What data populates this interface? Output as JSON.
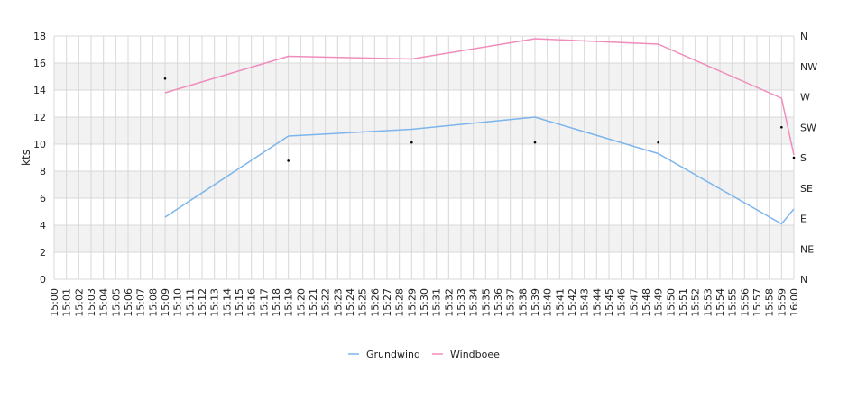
{
  "chart_data": {
    "type": "line",
    "title": "",
    "xlabel": "",
    "ylabel": "kts",
    "ylim": [
      0,
      18
    ],
    "yticks": [
      0,
      2,
      4,
      6,
      8,
      10,
      12,
      14,
      16,
      18
    ],
    "y2_ticks": [
      "N",
      "NE",
      "E",
      "SE",
      "S",
      "SW",
      "W",
      "NW",
      "N"
    ],
    "x_time_start": "15:00",
    "x_time_end": "16:00",
    "x_ticks": [
      "15:00",
      "15:01",
      "15:02",
      "15:03",
      "15:04",
      "15:05",
      "15:06",
      "15:07",
      "15:08",
      "15:09",
      "15:10",
      "15:11",
      "15:12",
      "15:13",
      "15:14",
      "15:15",
      "15:16",
      "15:17",
      "15:18",
      "15:19",
      "15:20",
      "15:21",
      "15:22",
      "15:23",
      "15:24",
      "15:25",
      "15:26",
      "15:27",
      "15:28",
      "15:29",
      "15:30",
      "15:31",
      "15:32",
      "15:33",
      "15:34",
      "15:35",
      "15:36",
      "15:37",
      "15:38",
      "15:39",
      "15:40",
      "15:41",
      "15:42",
      "15:43",
      "15:44",
      "15:45",
      "15:46",
      "15:47",
      "15:48",
      "15:49",
      "15:50",
      "15:51",
      "15:52",
      "15:53",
      "15:54",
      "15:55",
      "15:56",
      "15:57",
      "15:58",
      "15:59",
      "16:00"
    ],
    "grid": true,
    "band_fill": "#f2f2f2",
    "legend_position": "bottom",
    "series": [
      {
        "name": "Grundwind",
        "color": "#7cb5ec",
        "points": [
          {
            "x": "15:09",
            "y": 4.6
          },
          {
            "x": "15:19",
            "y": 10.6
          },
          {
            "x": "15:29",
            "y": 11.1
          },
          {
            "x": "15:39",
            "y": 12.0
          },
          {
            "x": "15:49",
            "y": 9.3
          },
          {
            "x": "15:59",
            "y": 4.1
          },
          {
            "x": "16:00",
            "y": 5.2
          }
        ]
      },
      {
        "name": "Windboee",
        "color": "#f08cbc",
        "points": [
          {
            "x": "15:09",
            "y": 13.8
          },
          {
            "x": "15:19",
            "y": 16.5
          },
          {
            "x": "15:29",
            "y": 16.3
          },
          {
            "x": "15:39",
            "y": 17.8
          },
          {
            "x": "15:49",
            "y": 17.4
          },
          {
            "x": "15:59",
            "y": 13.4
          },
          {
            "x": "16:00",
            "y": 9.2
          }
        ]
      }
    ],
    "direction_points": [
      {
        "x": "15:09",
        "dir_index": 6.6
      },
      {
        "x": "15:19",
        "dir_index": 3.9
      },
      {
        "x": "15:29",
        "dir_index": 4.5
      },
      {
        "x": "15:39",
        "dir_index": 4.5
      },
      {
        "x": "15:49",
        "dir_index": 4.5
      },
      {
        "x": "15:59",
        "dir_index": 5.0
      },
      {
        "x": "16:00",
        "dir_index": 4.0
      }
    ]
  }
}
